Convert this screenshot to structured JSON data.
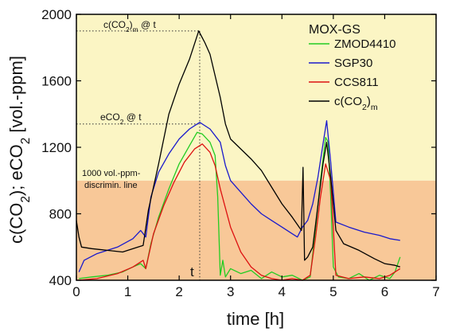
{
  "chart_data": {
    "type": "line",
    "xlabel": "time [h]",
    "ylabel_parts": [
      "c(CO",
      "2",
      "); eCO",
      "2",
      " [vol.-ppm]"
    ],
    "xlim": [
      0,
      7
    ],
    "ylim": [
      400,
      2000
    ],
    "x_ticks": [
      0,
      1,
      2,
      3,
      4,
      5,
      6,
      7
    ],
    "y_ticks": [
      400,
      800,
      1200,
      1600,
      2000
    ],
    "regions": [
      {
        "from": 400,
        "to": 1000,
        "color": "#f8c898"
      },
      {
        "from": 1000,
        "to": 2000,
        "color": "#fbf5c4"
      }
    ],
    "legend": {
      "title": "MOX-GS",
      "placement": "top-right",
      "entries": [
        {
          "label": "ZMOD4410",
          "sub": "",
          "color": "#22cc22"
        },
        {
          "label": "SGP30",
          "sub": "",
          "color": "#1a1acc"
        },
        {
          "label": "CCS811",
          "sub": "",
          "color": "#dd1111"
        },
        {
          "label": "c(CO",
          "sub": "2",
          "after": ")",
          "tail": "m",
          "color": "#000000"
        }
      ]
    },
    "annotations": {
      "cco2_at_t": {
        "a": "c(CO",
        "b": "2",
        "c": ")",
        "d": "m",
        "e": " @ t",
        "y": 1900
      },
      "eco2_at_t": {
        "a": "eCO",
        "b": "2",
        "c": " @ t",
        "y": 1340
      },
      "discrim_line1": "1000 vol.-ppm-",
      "discrim_line2": "discrimin. line",
      "t_label": "t",
      "t_value": 2.4
    },
    "series": [
      {
        "name": "ZMOD4410",
        "color": "#22cc22",
        "x": [
          0.05,
          0.3,
          0.6,
          0.9,
          1.1,
          1.25,
          1.35,
          1.45,
          1.6,
          1.8,
          2.0,
          2.2,
          2.35,
          2.45,
          2.6,
          2.7,
          2.75,
          2.8,
          2.85,
          2.9,
          3.0,
          3.2,
          3.4,
          3.6,
          3.8,
          4.0,
          4.2,
          4.4,
          4.55,
          4.65,
          4.75,
          4.85,
          4.9,
          4.95,
          5.0,
          5.1,
          5.3,
          5.5,
          5.7,
          5.9,
          6.1,
          6.2,
          6.3
        ],
        "y": [
          410,
          420,
          430,
          450,
          480,
          500,
          470,
          620,
          780,
          950,
          1100,
          1210,
          1290,
          1280,
          1230,
          1150,
          900,
          430,
          520,
          420,
          470,
          440,
          460,
          410,
          450,
          420,
          430,
          400,
          420,
          700,
          1000,
          1260,
          1230,
          900,
          480,
          420,
          410,
          440,
          400,
          430,
          410,
          450,
          540
        ]
      },
      {
        "name": "SGP30",
        "color": "#1a1acc",
        "x": [
          0.05,
          0.15,
          0.4,
          0.8,
          1.1,
          1.25,
          1.35,
          1.45,
          1.6,
          1.8,
          2.0,
          2.2,
          2.4,
          2.6,
          2.8,
          2.9,
          3.0,
          3.2,
          3.4,
          3.6,
          3.8,
          4.0,
          4.2,
          4.3,
          4.4,
          4.5,
          4.6,
          4.7,
          4.8,
          4.87,
          4.95,
          5.05,
          5.3,
          5.6,
          5.9,
          6.1,
          6.3
        ],
        "y": [
          450,
          520,
          560,
          600,
          650,
          700,
          660,
          900,
          1050,
          1160,
          1250,
          1310,
          1350,
          1310,
          1230,
          1090,
          1000,
          930,
          860,
          800,
          760,
          720,
          680,
          660,
          720,
          760,
          860,
          1020,
          1220,
          1360,
          1110,
          750,
          720,
          690,
          670,
          650,
          640
        ]
      },
      {
        "name": "CCS811",
        "color": "#dd1111",
        "x": [
          0.05,
          0.4,
          0.8,
          1.1,
          1.3,
          1.35,
          1.5,
          1.7,
          1.9,
          2.1,
          2.3,
          2.45,
          2.6,
          2.7,
          2.8,
          3.0,
          3.2,
          3.4,
          3.6,
          3.8,
          4.0,
          4.2,
          4.4,
          4.55,
          4.65,
          4.75,
          4.85,
          4.95,
          5.05,
          5.3,
          5.6,
          5.9,
          6.1,
          6.3
        ],
        "y": [
          400,
          410,
          440,
          480,
          520,
          470,
          680,
          850,
          990,
          1110,
          1190,
          1220,
          1170,
          1090,
          950,
          720,
          570,
          480,
          430,
          410,
          400,
          410,
          400,
          430,
          650,
          900,
          1100,
          1000,
          430,
          410,
          420,
          410,
          430,
          470
        ]
      },
      {
        "name": "c(CO2)m",
        "color": "#000000",
        "x": [
          0.0,
          0.05,
          0.1,
          0.3,
          0.6,
          0.9,
          1.2,
          1.3,
          1.4,
          1.6,
          1.8,
          2.0,
          2.2,
          2.38,
          2.5,
          2.6,
          2.8,
          2.9,
          3.0,
          3.2,
          3.4,
          3.6,
          3.8,
          4.0,
          4.2,
          4.38,
          4.41,
          4.44,
          4.5,
          4.6,
          4.7,
          4.8,
          4.87,
          4.95,
          5.05,
          5.2,
          5.5,
          5.8,
          6.0,
          6.2,
          6.3
        ],
        "y": [
          760,
          660,
          600,
          590,
          580,
          570,
          600,
          610,
          820,
          1100,
          1400,
          1580,
          1730,
          1900,
          1830,
          1760,
          1500,
          1340,
          1250,
          1190,
          1130,
          1060,
          960,
          860,
          780,
          700,
          1080,
          520,
          540,
          600,
          850,
          1100,
          1230,
          1020,
          700,
          620,
          580,
          530,
          500,
          490,
          480
        ]
      }
    ]
  }
}
